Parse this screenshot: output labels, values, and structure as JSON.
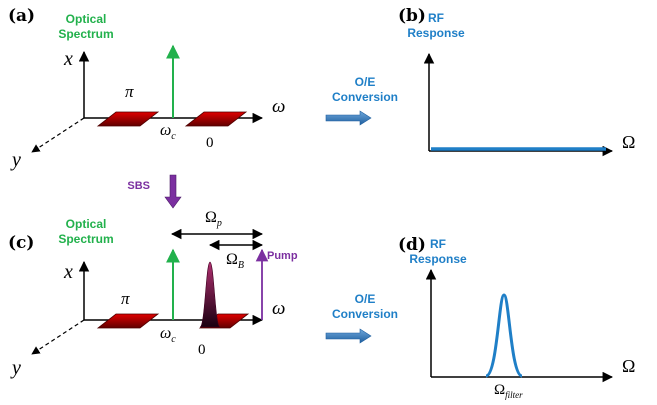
{
  "panels": {
    "a": {
      "tag": "(a)",
      "title_line1": "Optical",
      "title_line2": "Spectrum",
      "y_label": "x",
      "depth_label": "y",
      "freq_label": "ω",
      "carrier_label": "ω",
      "carrier_sub": "c",
      "lower_sb_label": "π",
      "upper_sb_label": "0"
    },
    "b": {
      "tag": "(b)",
      "title_line1": "RF",
      "title_line2": "Response",
      "axis_label": "Ω"
    },
    "c": {
      "tag": "(c)",
      "title_line1": "Optical",
      "title_line2": "Spectrum",
      "y_label": "x",
      "depth_label": "y",
      "freq_label": "ω",
      "carrier_label": "ω",
      "carrier_sub": "c",
      "lower_sb_label": "π",
      "upper_sb_label": "0",
      "pump_label": "Pump",
      "omega_p_label": "Ω",
      "omega_p_sub": "p",
      "omega_b_label": "Ω",
      "omega_b_sub": "B"
    },
    "d": {
      "tag": "(d)",
      "title_line1": "RF",
      "title_line2": "Response",
      "axis_label": "Ω",
      "filter_label": "Ω",
      "filter_sub": "filter"
    }
  },
  "conversion": {
    "line1": "O/E",
    "line2": "Conversion"
  },
  "sbs_label": "SBS",
  "colors": {
    "green": "#22b14c",
    "blue": "#1f7fc7",
    "purple": "#7b2fa0",
    "red": "#c00000",
    "darkred": "#600000"
  }
}
